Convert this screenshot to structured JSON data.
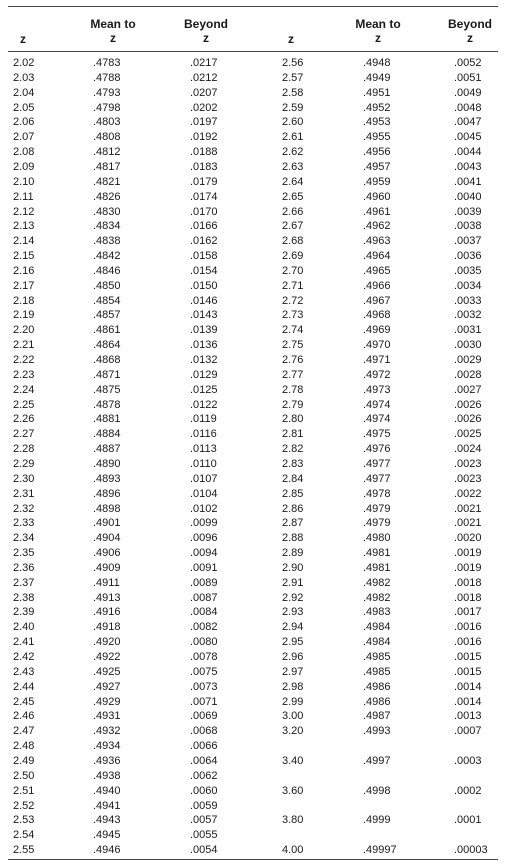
{
  "headers": [
    {
      "line1": "",
      "line2": "z"
    },
    {
      "line1": "Mean to",
      "line2": "z"
    },
    {
      "line1": "Beyond",
      "line2": "z"
    },
    {
      "line1": "",
      "line2": "z"
    },
    {
      "line1": "Mean to",
      "line2": "z"
    },
    {
      "line1": "Beyond",
      "line2": "z"
    }
  ],
  "left_rows": [
    [
      "2.02",
      ".4783",
      ".0217"
    ],
    [
      "2.03",
      ".4788",
      ".0212"
    ],
    [
      "2.04",
      ".4793",
      ".0207"
    ],
    [
      "2.05",
      ".4798",
      ".0202"
    ],
    [
      "2.06",
      ".4803",
      ".0197"
    ],
    [
      "2.07",
      ".4808",
      ".0192"
    ],
    [
      "2.08",
      ".4812",
      ".0188"
    ],
    [
      "2.09",
      ".4817",
      ".0183"
    ],
    [
      "2.10",
      ".4821",
      ".0179"
    ],
    [
      "2.11",
      ".4826",
      ".0174"
    ],
    [
      "2.12",
      ".4830",
      ".0170"
    ],
    [
      "2.13",
      ".4834",
      ".0166"
    ],
    [
      "2.14",
      ".4838",
      ".0162"
    ],
    [
      "2.15",
      ".4842",
      ".0158"
    ],
    [
      "2.16",
      ".4846",
      ".0154"
    ],
    [
      "2.17",
      ".4850",
      ".0150"
    ],
    [
      "2.18",
      ".4854",
      ".0146"
    ],
    [
      "2.19",
      ".4857",
      ".0143"
    ],
    [
      "2.20",
      ".4861",
      ".0139"
    ],
    [
      "2.21",
      ".4864",
      ".0136"
    ],
    [
      "2.22",
      ".4868",
      ".0132"
    ],
    [
      "2.23",
      ".4871",
      ".0129"
    ],
    [
      "2.24",
      ".4875",
      ".0125"
    ],
    [
      "2.25",
      ".4878",
      ".0122"
    ],
    [
      "2.26",
      ".4881",
      ".0119"
    ],
    [
      "2.27",
      ".4884",
      ".0116"
    ],
    [
      "2.28",
      ".4887",
      ".0113"
    ],
    [
      "2.29",
      ".4890",
      ".0110"
    ],
    [
      "2.30",
      ".4893",
      ".0107"
    ],
    [
      "2.31",
      ".4896",
      ".0104"
    ],
    [
      "2.32",
      ".4898",
      ".0102"
    ],
    [
      "2.33",
      ".4901",
      ".0099"
    ],
    [
      "2.34",
      ".4904",
      ".0096"
    ],
    [
      "2.35",
      ".4906",
      ".0094"
    ],
    [
      "2.36",
      ".4909",
      ".0091"
    ],
    [
      "2.37",
      ".4911",
      ".0089"
    ],
    [
      "2.38",
      ".4913",
      ".0087"
    ],
    [
      "2.39",
      ".4916",
      ".0084"
    ],
    [
      "2.40",
      ".4918",
      ".0082"
    ],
    [
      "2.41",
      ".4920",
      ".0080"
    ],
    [
      "2.42",
      ".4922",
      ".0078"
    ],
    [
      "2.43",
      ".4925",
      ".0075"
    ],
    [
      "2.44",
      ".4927",
      ".0073"
    ],
    [
      "2.45",
      ".4929",
      ".0071"
    ],
    [
      "2.46",
      ".4931",
      ".0069"
    ],
    [
      "2.47",
      ".4932",
      ".0068"
    ],
    [
      "2.48",
      ".4934",
      ".0066"
    ],
    [
      "2.49",
      ".4936",
      ".0064"
    ],
    [
      "2.50",
      ".4938",
      ".0062"
    ],
    [
      "2.51",
      ".4940",
      ".0060"
    ],
    [
      "2.52",
      ".4941",
      ".0059"
    ],
    [
      "2.53",
      ".4943",
      ".0057"
    ],
    [
      "2.54",
      ".4945",
      ".0055"
    ],
    [
      "2.55",
      ".4946",
      ".0054"
    ]
  ],
  "right_rows": [
    [
      "2.56",
      ".4948",
      ".0052"
    ],
    [
      "2.57",
      ".4949",
      ".0051"
    ],
    [
      "2.58",
      ".4951",
      ".0049"
    ],
    [
      "2.59",
      ".4952",
      ".0048"
    ],
    [
      "2.60",
      ".4953",
      ".0047"
    ],
    [
      "2.61",
      ".4955",
      ".0045"
    ],
    [
      "2.62",
      ".4956",
      ".0044"
    ],
    [
      "2.63",
      ".4957",
      ".0043"
    ],
    [
      "2.64",
      ".4959",
      ".0041"
    ],
    [
      "2.65",
      ".4960",
      ".0040"
    ],
    [
      "2.66",
      ".4961",
      ".0039"
    ],
    [
      "2.67",
      ".4962",
      ".0038"
    ],
    [
      "2.68",
      ".4963",
      ".0037"
    ],
    [
      "2.69",
      ".4964",
      ".0036"
    ],
    [
      "2.70",
      ".4965",
      ".0035"
    ],
    [
      "2.71",
      ".4966",
      ".0034"
    ],
    [
      "2.72",
      ".4967",
      ".0033"
    ],
    [
      "2.73",
      ".4968",
      ".0032"
    ],
    [
      "2.74",
      ".4969",
      ".0031"
    ],
    [
      "2.75",
      ".4970",
      ".0030"
    ],
    [
      "2.76",
      ".4971",
      ".0029"
    ],
    [
      "2.77",
      ".4972",
      ".0028"
    ],
    [
      "2.78",
      ".4973",
      ".0027"
    ],
    [
      "2.79",
      ".4974",
      ".0026"
    ],
    [
      "2.80",
      ".4974",
      ".0026"
    ],
    [
      "2.81",
      ".4975",
      ".0025"
    ],
    [
      "2.82",
      ".4976",
      ".0024"
    ],
    [
      "2.83",
      ".4977",
      ".0023"
    ],
    [
      "2.84",
      ".4977",
      ".0023"
    ],
    [
      "2.85",
      ".4978",
      ".0022"
    ],
    [
      "2.86",
      ".4979",
      ".0021"
    ],
    [
      "2.87",
      ".4979",
      ".0021"
    ],
    [
      "2.88",
      ".4980",
      ".0020"
    ],
    [
      "2.89",
      ".4981",
      ".0019"
    ],
    [
      "2.90",
      ".4981",
      ".0019"
    ],
    [
      "2.91",
      ".4982",
      ".0018"
    ],
    [
      "2.92",
      ".4982",
      ".0018"
    ],
    [
      "2.93",
      ".4983",
      ".0017"
    ],
    [
      "2.94",
      ".4984",
      ".0016"
    ],
    [
      "2.95",
      ".4984",
      ".0016"
    ],
    [
      "2.96",
      ".4985",
      ".0015"
    ],
    [
      "2.97",
      ".4985",
      ".0015"
    ],
    [
      "2.98",
      ".4986",
      ".0014"
    ],
    [
      "2.99",
      ".4986",
      ".0014"
    ],
    [
      "3.00",
      ".4987",
      ".0013"
    ],
    [
      "3.20",
      ".4993",
      ".0007"
    ],
    [
      "3.40",
      ".4997",
      ".0003"
    ],
    [
      "3.60",
      ".4998",
      ".0002"
    ],
    [
      "3.80",
      ".4999",
      ".0001"
    ],
    [
      "4.00",
      ".49997",
      ".00003"
    ]
  ]
}
